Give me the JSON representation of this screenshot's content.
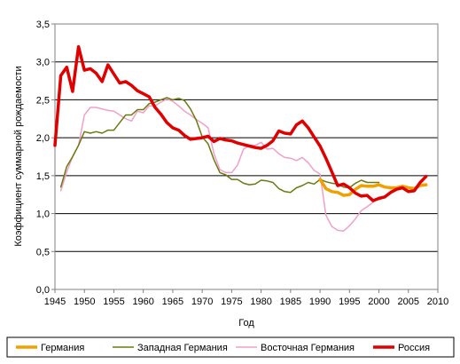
{
  "chart_data": {
    "type": "line",
    "title": "",
    "xlabel": "Год",
    "ylabel": "Коэффициент суммарной рождаемости",
    "xlim": [
      1945,
      2010
    ],
    "ylim": [
      0,
      3.5
    ],
    "xticks": [
      "1945",
      "1950",
      "1955",
      "1960",
      "1965",
      "1970",
      "1975",
      "1980",
      "1985",
      "1990",
      "1995",
      "2000",
      "2005",
      "2010"
    ],
    "yticks": [
      "0,0",
      "0,5",
      "1,0",
      "1,5",
      "2,0",
      "2,5",
      "3,0",
      "3,5"
    ],
    "grid": "horizontal",
    "legend_position": "bottom",
    "series": [
      {
        "name": "Германия",
        "color": "#f0a000",
        "x": [
          1990,
          1991,
          1992,
          1993,
          1994,
          1995,
          1996,
          1997,
          1998,
          1999,
          2000,
          2001,
          2002,
          2003,
          2004,
          2005,
          2006,
          2007,
          2008
        ],
        "y": [
          1.45,
          1.33,
          1.29,
          1.28,
          1.24,
          1.25,
          1.32,
          1.37,
          1.36,
          1.36,
          1.38,
          1.35,
          1.34,
          1.34,
          1.36,
          1.34,
          1.33,
          1.37,
          1.38
        ]
      },
      {
        "name": "Западная Германия",
        "color": "#6b7a10",
        "x": [
          1946,
          1947,
          1948,
          1949,
          1950,
          1951,
          1952,
          1953,
          1954,
          1955,
          1956,
          1957,
          1958,
          1959,
          1960,
          1961,
          1962,
          1963,
          1964,
          1965,
          1966,
          1967,
          1968,
          1969,
          1970,
          1971,
          1972,
          1973,
          1974,
          1975,
          1976,
          1977,
          1978,
          1979,
          1980,
          1981,
          1982,
          1983,
          1984,
          1985,
          1986,
          1987,
          1988,
          1989,
          1990,
          1991,
          1992,
          1993,
          1994,
          1995,
          1996,
          1997,
          1998,
          1999,
          2000
        ],
        "y": [
          1.35,
          1.62,
          1.75,
          1.9,
          2.08,
          2.06,
          2.08,
          2.06,
          2.1,
          2.1,
          2.2,
          2.3,
          2.3,
          2.37,
          2.37,
          2.45,
          2.47,
          2.5,
          2.53,
          2.5,
          2.52,
          2.49,
          2.38,
          2.23,
          2.01,
          1.92,
          1.71,
          1.54,
          1.51,
          1.45,
          1.45,
          1.4,
          1.38,
          1.39,
          1.44,
          1.43,
          1.41,
          1.33,
          1.29,
          1.28,
          1.34,
          1.37,
          1.41,
          1.39,
          1.45,
          1.42,
          1.4,
          1.39,
          1.35,
          1.34,
          1.4,
          1.44,
          1.41,
          1.41,
          1.41
        ]
      },
      {
        "name": "Восточная Германия",
        "color": "#f0a0c8",
        "x": [
          1946,
          1947,
          1948,
          1949,
          1950,
          1951,
          1952,
          1953,
          1954,
          1955,
          1956,
          1957,
          1958,
          1959,
          1960,
          1961,
          1962,
          1963,
          1964,
          1965,
          1966,
          1967,
          1968,
          1969,
          1970,
          1971,
          1972,
          1973,
          1974,
          1975,
          1976,
          1977,
          1978,
          1979,
          1980,
          1981,
          1982,
          1983,
          1984,
          1985,
          1986,
          1987,
          1988,
          1989,
          1990,
          1991,
          1992,
          1993,
          1994,
          1995,
          1996,
          1997,
          1998,
          1999,
          2000
        ],
        "y": [
          1.3,
          1.55,
          1.75,
          1.9,
          2.3,
          2.4,
          2.4,
          2.38,
          2.36,
          2.35,
          2.3,
          2.25,
          2.22,
          2.35,
          2.33,
          2.42,
          2.42,
          2.47,
          2.51,
          2.48,
          2.42,
          2.35,
          2.3,
          2.24,
          2.19,
          2.13,
          1.79,
          1.58,
          1.54,
          1.54,
          1.64,
          1.85,
          1.9,
          1.9,
          1.94,
          1.85,
          1.86,
          1.79,
          1.74,
          1.73,
          1.7,
          1.74,
          1.67,
          1.57,
          1.52,
          0.98,
          0.83,
          0.78,
          0.77,
          0.84,
          0.93,
          1.04,
          1.09,
          1.15,
          1.22
        ]
      },
      {
        "name": "Россия",
        "color": "#e00000",
        "x": [
          1945,
          1946,
          1947,
          1948,
          1949,
          1950,
          1951,
          1952,
          1953,
          1954,
          1955,
          1956,
          1957,
          1958,
          1959,
          1960,
          1961,
          1962,
          1963,
          1964,
          1965,
          1966,
          1967,
          1968,
          1969,
          1970,
          1971,
          1972,
          1973,
          1974,
          1975,
          1976,
          1977,
          1978,
          1979,
          1980,
          1981,
          1982,
          1983,
          1984,
          1985,
          1986,
          1987,
          1988,
          1989,
          1990,
          1991,
          1992,
          1993,
          1994,
          1995,
          1996,
          1997,
          1998,
          1999,
          2000,
          2001,
          2002,
          2003,
          2004,
          2005,
          2006,
          2007,
          2008
        ],
        "y": [
          1.9,
          2.82,
          2.93,
          2.61,
          3.2,
          2.89,
          2.91,
          2.85,
          2.74,
          2.96,
          2.84,
          2.72,
          2.74,
          2.69,
          2.62,
          2.58,
          2.54,
          2.4,
          2.31,
          2.2,
          2.13,
          2.1,
          2.03,
          1.98,
          1.99,
          2.0,
          2.02,
          1.95,
          1.99,
          1.97,
          1.96,
          1.93,
          1.91,
          1.89,
          1.87,
          1.86,
          1.9,
          1.96,
          2.09,
          2.06,
          2.05,
          2.17,
          2.22,
          2.13,
          2.01,
          1.89,
          1.73,
          1.55,
          1.37,
          1.39,
          1.34,
          1.27,
          1.23,
          1.24,
          1.17,
          1.2,
          1.22,
          1.28,
          1.32,
          1.34,
          1.29,
          1.3,
          1.41,
          1.49
        ]
      }
    ]
  }
}
